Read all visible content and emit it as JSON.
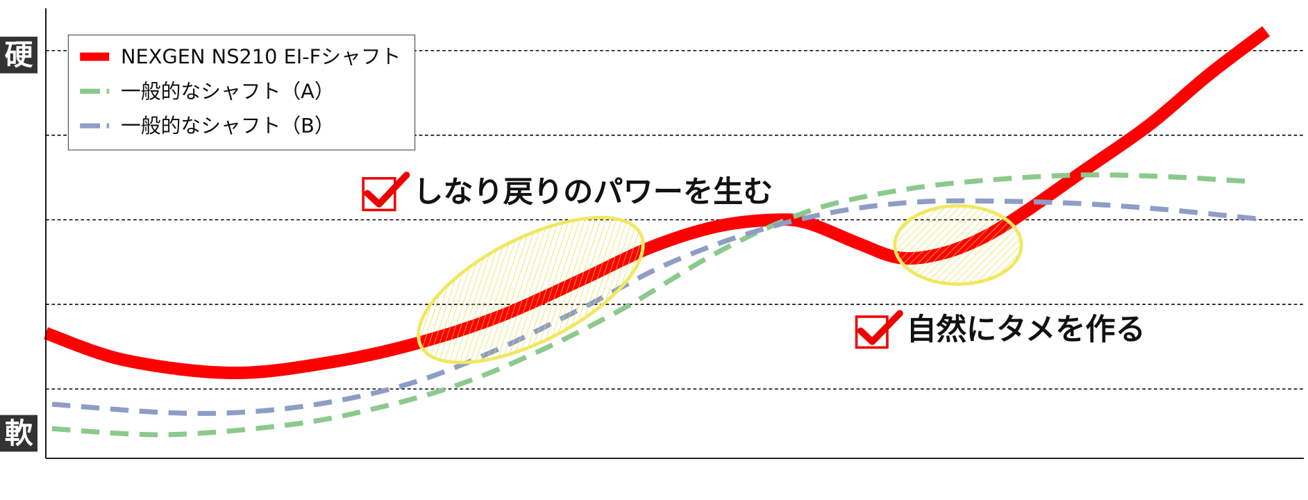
{
  "chart_data": {
    "type": "line",
    "y_label_top": "硬",
    "y_label_bottom": "軟",
    "xlim": [
      0,
      100
    ],
    "ylim": [
      0.18,
      5.5
    ],
    "yticks": [
      1,
      2,
      3,
      4,
      5
    ],
    "grid": true,
    "legend": "upper left",
    "annotations": [
      "しなり戻りのパワーを生む",
      "自然にタメを作る"
    ],
    "series": [
      {
        "name": "NEXGEN NS210 EI-Fシャフト",
        "color": "#ff0000",
        "style": "solid",
        "x": [
          0,
          6.3,
          14.9,
          22.8,
          29.5,
          36.1,
          42.7,
          48.0,
          53.3,
          57.9,
          60.6,
          64.6,
          67.9,
          71.2,
          74.5,
          77.8,
          82.5,
          87.7,
          92.4,
          97.0
        ],
        "values": [
          1.66,
          1.34,
          1.19,
          1.32,
          1.54,
          1.86,
          2.3,
          2.67,
          2.92,
          3.0,
          2.96,
          2.72,
          2.55,
          2.6,
          2.79,
          3.09,
          3.58,
          4.12,
          4.71,
          5.23
        ]
      },
      {
        "name": "一般的なシャフト（A）",
        "color": "#8cc98c",
        "style": "dashed",
        "x": [
          0.5,
          9.6,
          19.5,
          26.2,
          32.8,
          39.4,
          46.0,
          52.6,
          57.9,
          62.6,
          69.2,
          75.8,
          82.5,
          89.1,
          96.0
        ],
        "values": [
          0.53,
          0.46,
          0.58,
          0.77,
          1.05,
          1.46,
          1.96,
          2.55,
          2.94,
          3.19,
          3.38,
          3.48,
          3.53,
          3.51,
          3.45
        ]
      },
      {
        "name": "一般的なシャフト（B）",
        "color": "#8d9dc6",
        "style": "dashed",
        "x": [
          0.5,
          9.6,
          16.2,
          22.8,
          29.5,
          36.1,
          42.7,
          49.3,
          55.9,
          62.6,
          69.2,
          75.8,
          82.5,
          89.1,
          96.4
        ],
        "values": [
          0.82,
          0.72,
          0.73,
          0.85,
          1.09,
          1.48,
          1.96,
          2.47,
          2.84,
          3.09,
          3.21,
          3.22,
          3.19,
          3.12,
          3.01
        ]
      }
    ]
  }
}
